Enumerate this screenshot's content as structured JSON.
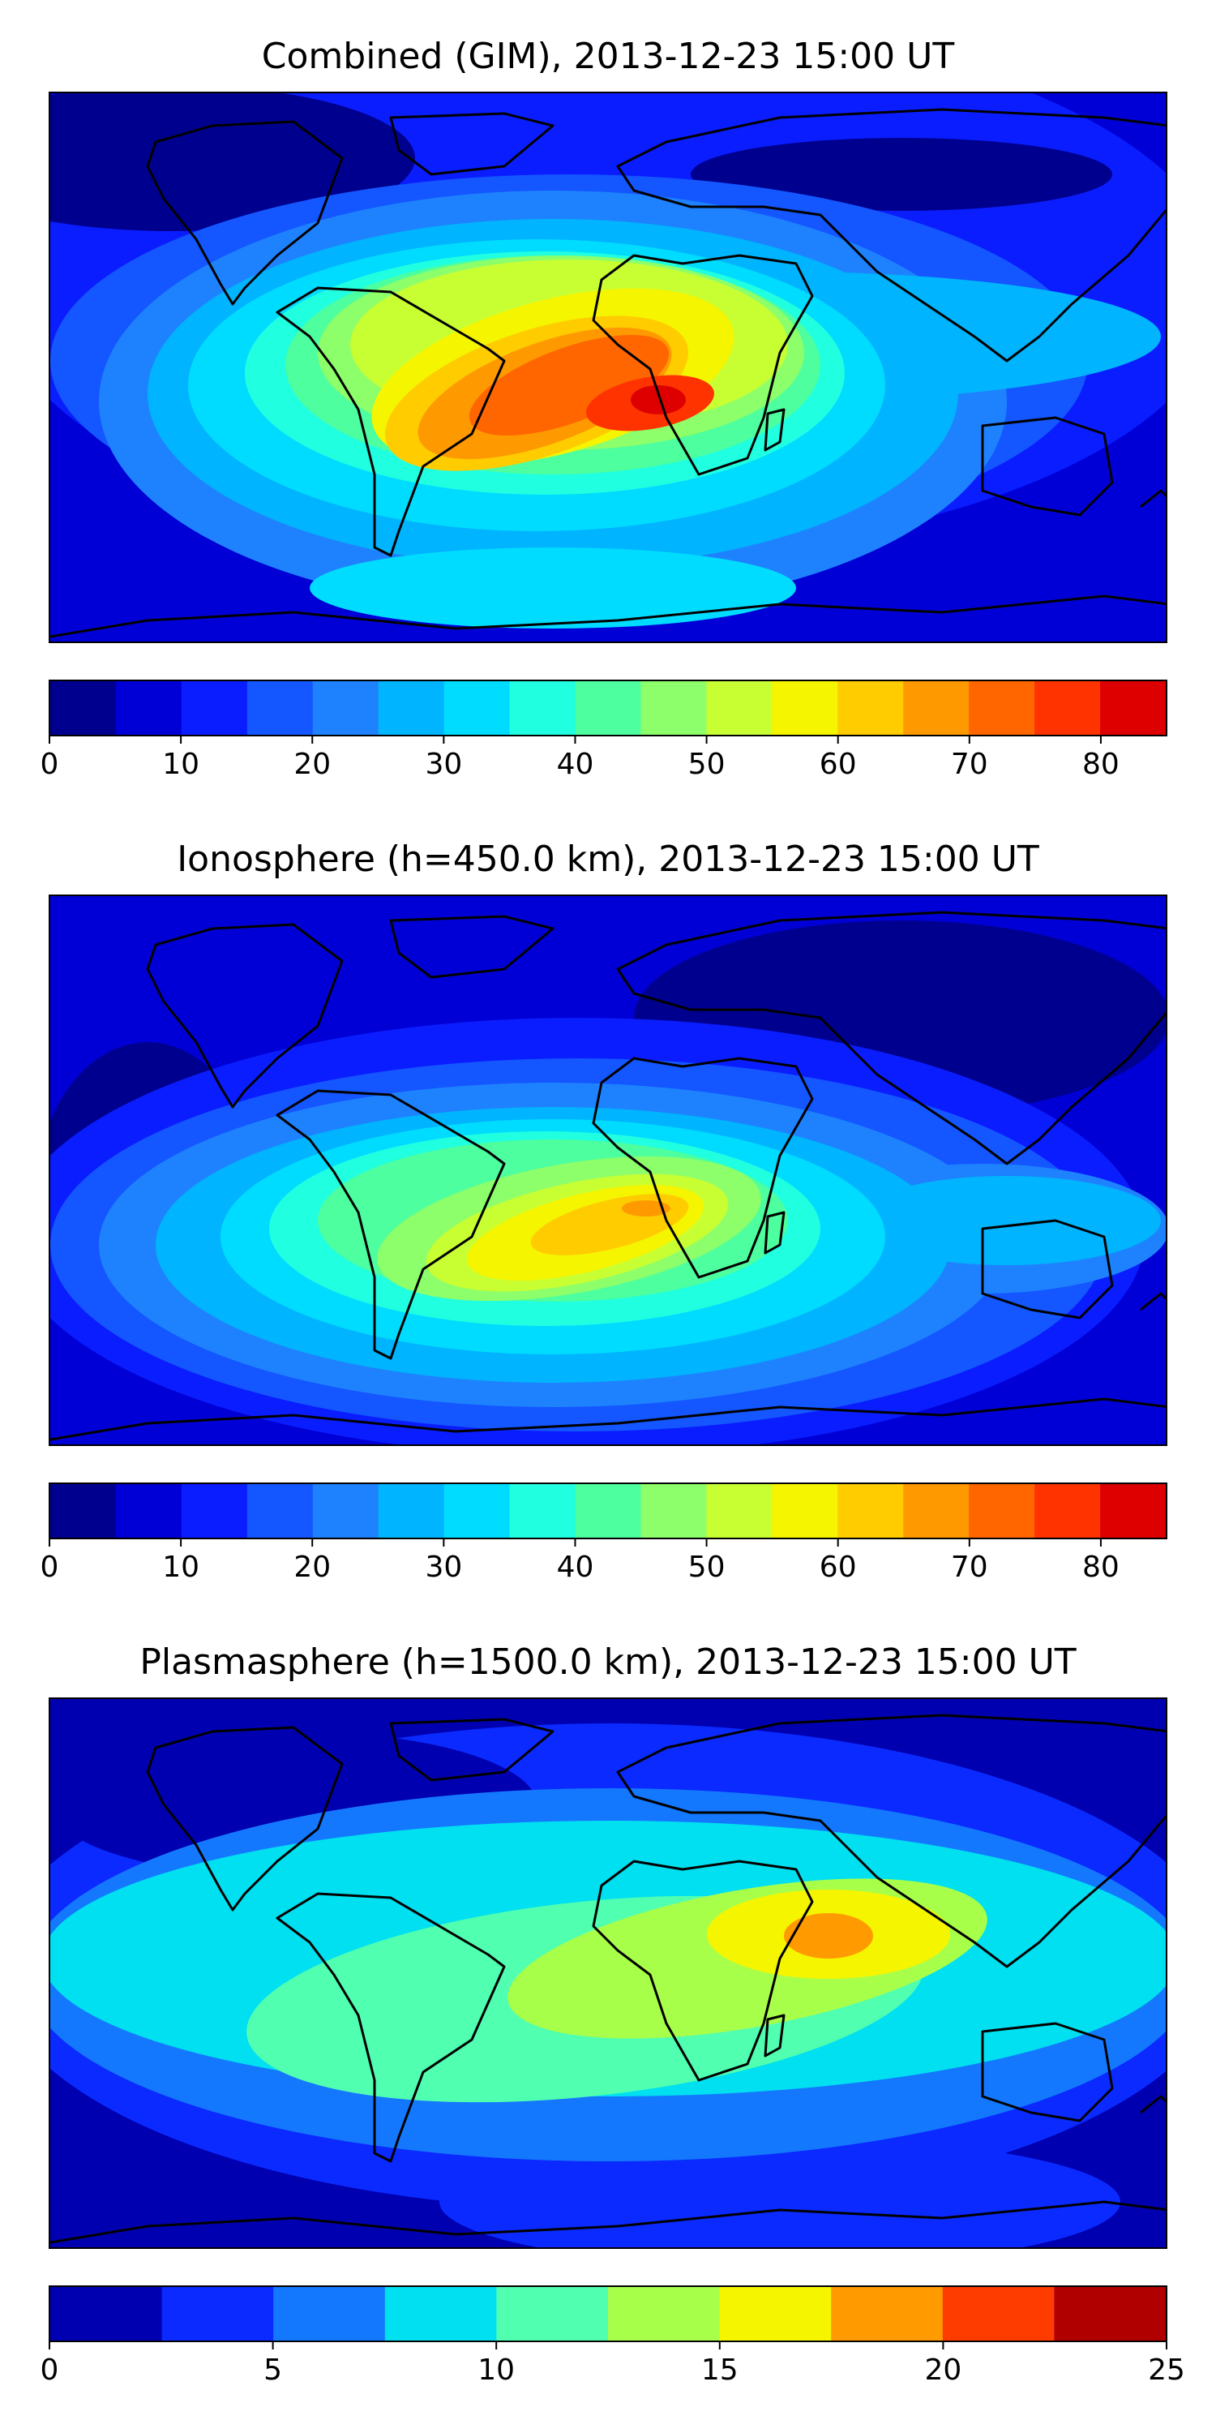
{
  "panels": [
    {
      "title": "Combined (GIM), 2013-12-23 15:00 UT",
      "colorbar": {
        "levels": [
          0,
          5,
          10,
          15,
          20,
          25,
          30,
          35,
          40,
          45,
          50,
          55,
          60,
          65,
          70,
          75,
          80,
          85
        ],
        "colors": [
          "#00008f",
          "#0000d6",
          "#0a1dff",
          "#1456ff",
          "#1e82ff",
          "#00b4ff",
          "#00dcff",
          "#20ffe0",
          "#4dff9e",
          "#8cff6a",
          "#c8ff33",
          "#f5f500",
          "#ffcc00",
          "#ff9900",
          "#ff6600",
          "#ff3300",
          "#de0000",
          "#990000"
        ],
        "tick_labels": [
          "0",
          "10",
          "20",
          "30",
          "40",
          "50",
          "60",
          "70",
          "80"
        ],
        "tick_values": [
          0,
          10,
          20,
          30,
          40,
          50,
          60,
          70,
          80
        ],
        "min": 0,
        "max": 85
      }
    },
    {
      "title": "Ionosphere  (h=450.0 km), 2013-12-23 15:00 UT",
      "colorbar": {
        "levels": [
          0,
          5,
          10,
          15,
          20,
          25,
          30,
          35,
          40,
          45,
          50,
          55,
          60,
          65,
          70,
          75,
          80,
          85
        ],
        "colors": [
          "#00008f",
          "#0000d6",
          "#0a1dff",
          "#1456ff",
          "#1e82ff",
          "#00b4ff",
          "#00dcff",
          "#20ffe0",
          "#4dff9e",
          "#8cff6a",
          "#c8ff33",
          "#f5f500",
          "#ffcc00",
          "#ff9900",
          "#ff6600",
          "#ff3300",
          "#de0000",
          "#990000"
        ],
        "tick_labels": [
          "0",
          "10",
          "20",
          "30",
          "40",
          "50",
          "60",
          "70",
          "80"
        ],
        "tick_values": [
          0,
          10,
          20,
          30,
          40,
          50,
          60,
          70,
          80
        ],
        "min": 0,
        "max": 85
      }
    },
    {
      "title": "Plasmasphere (h=1500.0 km), 2013-12-23 15:00 UT",
      "colorbar": {
        "levels": [
          0,
          2.5,
          5,
          7.5,
          10,
          12.5,
          15,
          17.5,
          20,
          22.5,
          25
        ],
        "colors": [
          "#0000b0",
          "#0a2aff",
          "#1478ff",
          "#00e0f0",
          "#50ffb0",
          "#a8ff4a",
          "#f5f500",
          "#ff9a00",
          "#ff3c00",
          "#b00000"
        ],
        "tick_labels": [
          "0",
          "5",
          "10",
          "15",
          "20",
          "25"
        ],
        "tick_values": [
          0,
          5,
          10,
          15,
          20,
          25
        ],
        "min": 0,
        "max": 25
      }
    }
  ],
  "colors": {
    "coastline": "#000000"
  }
}
